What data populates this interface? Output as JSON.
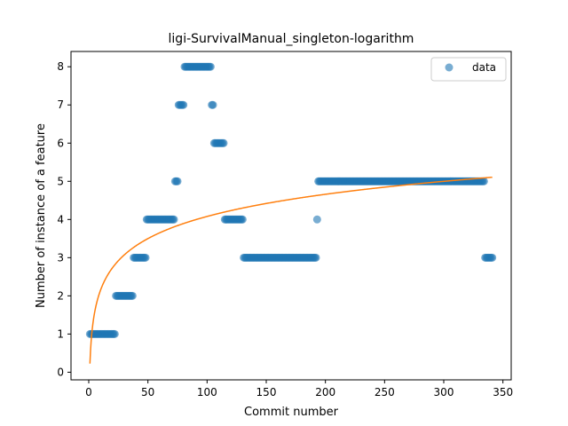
{
  "chart_data": {
    "type": "scatter",
    "title": "ligi-SurvivalManual_singleton-logarithm",
    "xlabel": "Commit number",
    "ylabel": "Number of instance of a feature",
    "xlim": [
      -15,
      357
    ],
    "ylim": [
      -0.2,
      8.4
    ],
    "xticks": [
      0,
      50,
      100,
      150,
      200,
      250,
      300,
      350
    ],
    "yticks": [
      0,
      1,
      2,
      3,
      4,
      5,
      6,
      7,
      8
    ],
    "xtick_labels": [
      "0",
      "50",
      "100",
      "150",
      "200",
      "250",
      "300",
      "350"
    ],
    "ytick_labels": [
      "0",
      "1",
      "2",
      "3",
      "4",
      "5",
      "6",
      "7",
      "8"
    ],
    "grid": false,
    "legend": {
      "position": "top-right",
      "entries": [
        "data"
      ]
    },
    "colors": {
      "data": "#1f77b4",
      "fit": "#ff7f0e"
    },
    "series": [
      {
        "name": "data",
        "kind": "scatter",
        "segments": [
          {
            "x_start": 1,
            "x_end": 22,
            "y": 1
          },
          {
            "x_start": 23,
            "x_end": 37,
            "y": 2
          },
          {
            "x_start": 38,
            "x_end": 48,
            "y": 3
          },
          {
            "x_start": 49,
            "x_end": 72,
            "y": 4
          },
          {
            "x_start": 73,
            "x_end": 75,
            "y": 5
          },
          {
            "x_start": 76,
            "x_end": 80,
            "y": 7
          },
          {
            "x_start": 81,
            "x_end": 103,
            "y": 8
          },
          {
            "x_start": 104,
            "x_end": 105,
            "y": 7
          },
          {
            "x_start": 106,
            "x_end": 114,
            "y": 6
          },
          {
            "x_start": 115,
            "x_end": 130,
            "y": 4
          },
          {
            "x_start": 131,
            "x_end": 192,
            "y": 3
          },
          {
            "x_start": 193,
            "x_end": 193,
            "y": 4
          },
          {
            "x_start": 194,
            "x_end": 334,
            "y": 5
          },
          {
            "x_start": 335,
            "x_end": 341,
            "y": 3
          }
        ]
      },
      {
        "kind": "line",
        "formula": "y = 0.225 + 0.837 * ln(x)",
        "x_range": [
          1,
          341
        ]
      }
    ]
  }
}
